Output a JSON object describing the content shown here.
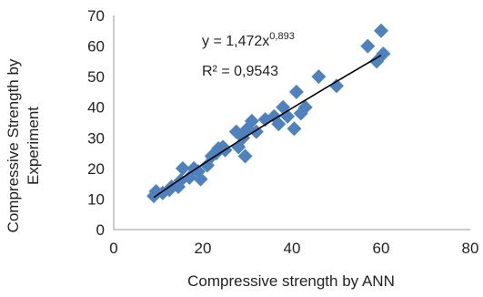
{
  "chart_data": {
    "type": "scatter",
    "xlabel": "Compressive strength by ANN",
    "ylabel_lines": [
      "Compressive Strength by",
      "Experiment"
    ],
    "xlim": [
      0,
      80
    ],
    "ylim": [
      0,
      70
    ],
    "xticks": [
      0,
      20,
      40,
      60,
      80
    ],
    "yticks": [
      0,
      10,
      20,
      30,
      40,
      50,
      60,
      70
    ],
    "grid": false,
    "legend": "none",
    "marker": "diamond",
    "marker_color": "#4F81BD",
    "trendline_color": "#000000",
    "equation": {
      "prefix": "y = 1,472x",
      "exponent": "0,893"
    },
    "r_squared": "R² = 0,9543",
    "trendline": {
      "type": "power",
      "a": 1.472,
      "b": 0.893,
      "x_range": [
        9,
        60
      ]
    },
    "series": [
      {
        "points": [
          [
            9,
            11
          ],
          [
            9.5,
            12.5
          ],
          [
            11,
            12
          ],
          [
            12.5,
            13
          ],
          [
            13,
            14
          ],
          [
            14.5,
            14
          ],
          [
            15,
            16
          ],
          [
            15.5,
            20
          ],
          [
            17,
            17
          ],
          [
            18,
            20
          ],
          [
            19,
            19
          ],
          [
            19.5,
            16.5
          ],
          [
            21,
            21
          ],
          [
            22,
            24
          ],
          [
            23,
            25
          ],
          [
            23.5,
            26.5
          ],
          [
            24.5,
            27
          ],
          [
            25,
            26
          ],
          [
            27.5,
            32
          ],
          [
            28,
            27
          ],
          [
            29,
            30
          ],
          [
            29.5,
            24
          ],
          [
            30,
            33
          ],
          [
            31,
            35.5
          ],
          [
            32,
            32
          ],
          [
            34,
            36
          ],
          [
            36,
            37
          ],
          [
            37,
            34.5
          ],
          [
            38,
            40
          ],
          [
            39,
            37
          ],
          [
            40.5,
            33
          ],
          [
            41,
            45
          ],
          [
            42,
            38
          ],
          [
            43,
            40
          ],
          [
            46,
            50
          ],
          [
            50,
            47
          ],
          [
            57,
            60
          ],
          [
            59,
            55
          ],
          [
            60,
            65
          ],
          [
            60.5,
            57.5
          ]
        ]
      }
    ]
  }
}
